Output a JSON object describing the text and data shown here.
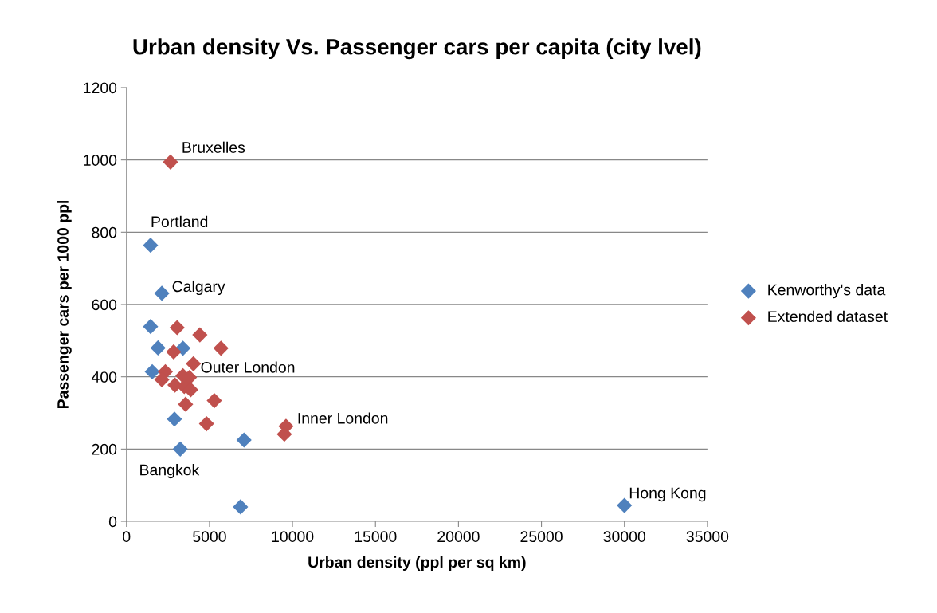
{
  "chart_data": {
    "type": "scatter",
    "title": "Urban density Vs. Passenger cars per capita (city lvel)",
    "xlabel": "Urban density (ppl per sq km)",
    "ylabel": "Passenger cars per 1000 ppl",
    "series": [
      {
        "name": "Kenworthy's data",
        "color": "#4f81bd",
        "x": [
          1450,
          2130,
          1450,
          1710,
          1900,
          3400,
          1550,
          2890,
          3240,
          7080,
          6870,
          30000
        ],
        "values": [
          764,
          631,
          539,
          null,
          480,
          479,
          414,
          283,
          200,
          225,
          40,
          44
        ]
      },
      {
        "name": "Extended dataset",
        "color": "#c0504d",
        "x": [
          2650,
          3050,
          4420,
          5690,
          2840,
          4030,
          2500,
          2340,
          2130,
          3400,
          3790,
          2920,
          3480,
          3870,
          3560,
          5290,
          4820,
          9610,
          9510
        ],
        "values": [
          994,
          536,
          516,
          479,
          469,
          436,
          null,
          414,
          392,
          403,
          398,
          377,
          373,
          364,
          324,
          334,
          270,
          263,
          241
        ]
      }
    ],
    "annotations": [
      {
        "text": "Bruxelles",
        "x": 2650,
        "y": 994
      },
      {
        "text": "Portland",
        "x": 1450,
        "y": 764
      },
      {
        "text": "Calgary",
        "x": 2130,
        "y": 631
      },
      {
        "text": "Outer London",
        "x": 3790,
        "y": 398
      },
      {
        "text": "Inner London",
        "x": 9610,
        "y": 263
      },
      {
        "text": "Bangkok",
        "x": 3240,
        "y": 200
      },
      {
        "text": "Hong Kong",
        "x": 30000,
        "y": 44
      }
    ],
    "xlim": [
      0,
      35000
    ],
    "xticks": [
      0,
      5000,
      10000,
      15000,
      20000,
      25000,
      30000,
      35000
    ],
    "ylim": [
      0,
      1200
    ],
    "yticks": [
      0,
      200,
      400,
      600,
      800,
      1000,
      1200
    ],
    "grid": "y",
    "legend": "right",
    "marker": "diamond"
  }
}
